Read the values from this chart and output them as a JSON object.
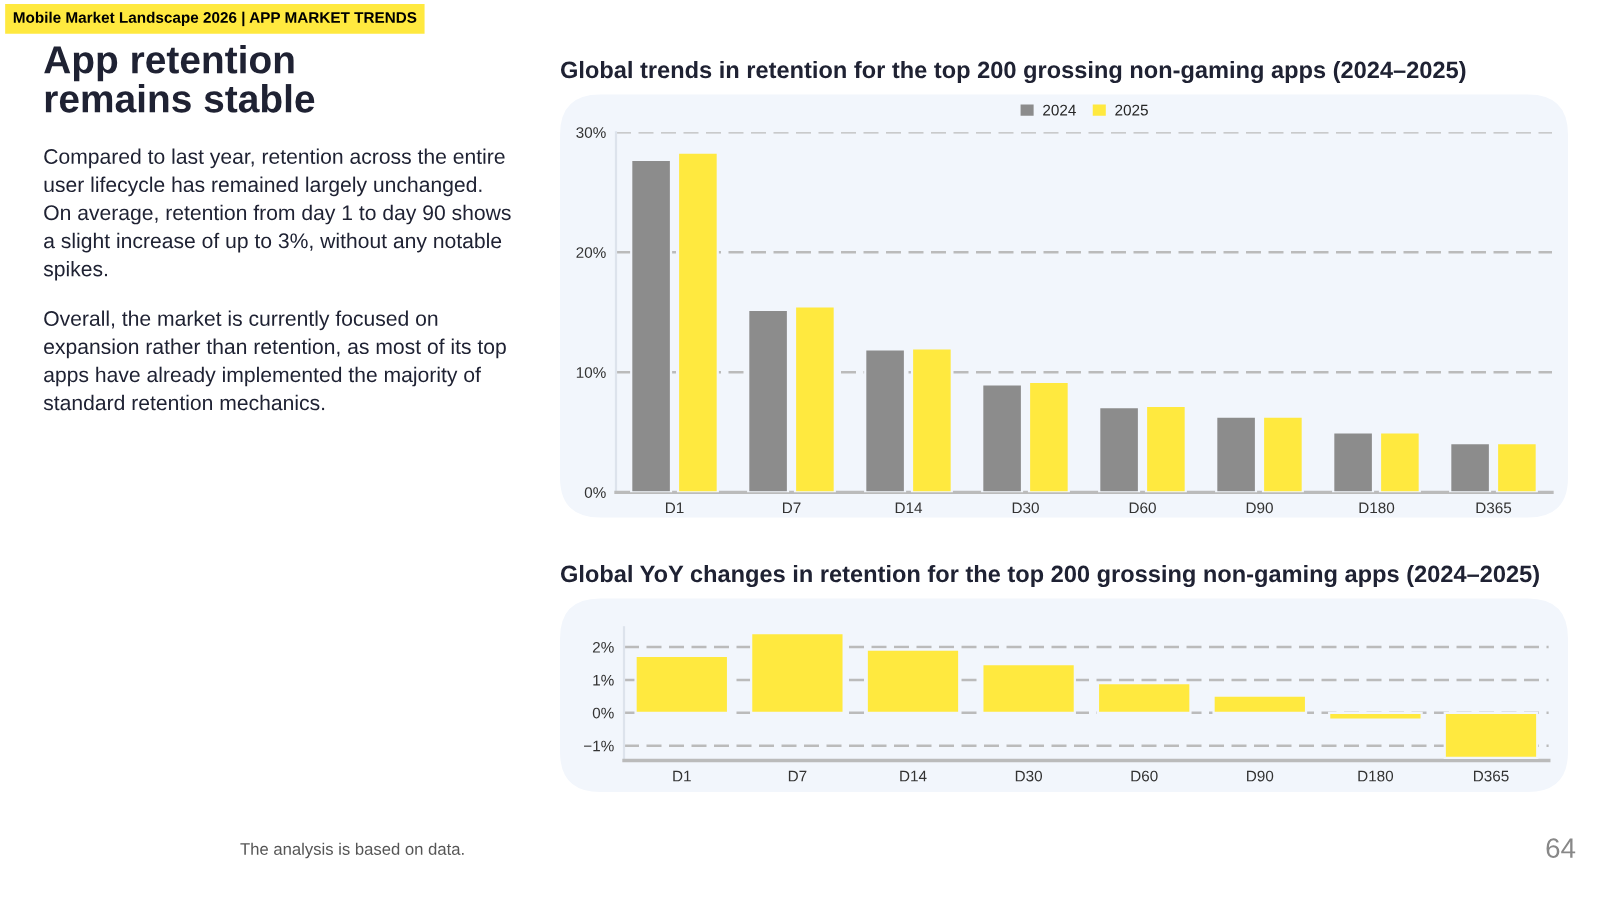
{
  "chart_data": [
    {
      "type": "other",
      "title": "App retention remains stable",
      "annotations": [
        "Mobile Market Landscape 2026 | APP MARKET TRENDS",
        "Compared to last year, retention across the entire user lifecycle has remained largely unchanged. On average, retention from day 1 to day 90 shows a slight increase of up to 3%, without any notable spikes.",
        "Overall, the market is currently focused on expansion rather than retention, as most of its top apps have already implemented the majority of standard retention mechanics.",
        "The analysis is based on data.",
        "64"
      ]
    },
    {
      "type": "bar",
      "title": "Global trends in retention for the top 200 grossing non-gaming apps (2024–2025)",
      "categories": [
        "D1",
        "D7",
        "D14",
        "D30",
        "D60",
        "D90",
        "D180",
        "D365"
      ],
      "series": [
        {
          "name": "2024",
          "color": "#8c8c8c",
          "values": [
            27.7,
            15.2,
            11.9,
            9.0,
            7.1,
            6.3,
            5.0,
            4.1
          ]
        },
        {
          "name": "2025",
          "color": "#ffe93f",
          "values": [
            28.3,
            15.5,
            12.0,
            9.2,
            7.2,
            6.3,
            5.0,
            4.1
          ]
        }
      ],
      "ylim": [
        0,
        30
      ],
      "yticks": [
        {
          "value": 0,
          "label": "0%"
        },
        {
          "value": 10,
          "label": "10%"
        },
        {
          "value": 20,
          "label": "20%"
        },
        {
          "value": 30,
          "label": "30%"
        }
      ],
      "grid": "y",
      "legend": "top"
    },
    {
      "type": "bar",
      "title": "Global YoY changes in retention for the top 200 grossing non-gaming apps (2024–2025)",
      "categories": [
        "D1",
        "D7",
        "D14",
        "D30",
        "D60",
        "D90",
        "D180",
        "D365"
      ],
      "series": [
        {
          "color": "#ffe93f",
          "values": [
            1.73,
            2.42,
            1.92,
            1.48,
            0.9,
            0.52,
            -0.21,
            -1.37
          ]
        }
      ],
      "ylim": [
        -1.45,
        2.6
      ],
      "yticks": [
        {
          "value": -1,
          "label": "−1%"
        },
        {
          "value": 0,
          "label": "0%"
        },
        {
          "value": 1,
          "label": "1%"
        },
        {
          "value": 2,
          "label": "2%"
        }
      ],
      "grid": "y"
    }
  ]
}
